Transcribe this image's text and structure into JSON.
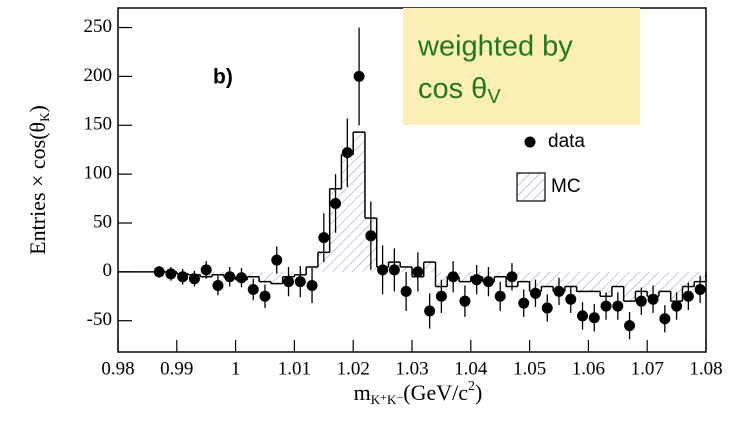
{
  "chart_data": {
    "type": "histogram",
    "panel_label": "b)",
    "xlabel": {
      "text": "m",
      "sub": "K⁺K⁻",
      "mid": "(GeV/c",
      "sup": "2",
      "end": ")"
    },
    "ylabel": {
      "text": "Entries × cos(θ",
      "sub": "K",
      "end": ")"
    },
    "annotation": {
      "line1": "weighted by",
      "line2": "cos θ",
      "sub": "V"
    },
    "xlim": [
      0.98,
      1.08
    ],
    "ylim": [
      -82,
      270
    ],
    "xticks": [
      0.98,
      0.99,
      {
        "value": 1.0,
        "label": "1"
      },
      1.01,
      1.02,
      1.03,
      1.04,
      1.05,
      1.06,
      1.07,
      1.08
    ],
    "yticks": [
      -50,
      0,
      50,
      100,
      150,
      200,
      250
    ],
    "name": "MC",
    "color": "#8f8fc4",
    "bins": [
      0.98,
      0.982,
      0.984,
      0.986,
      0.988,
      0.99,
      0.992,
      0.994,
      0.996,
      0.998,
      1.0,
      1.002,
      1.004,
      1.006,
      1.008,
      1.01,
      1.012,
      1.014,
      1.016,
      1.018,
      1.02,
      1.022,
      1.024,
      1.026,
      1.028,
      1.03,
      1.032,
      1.034,
      1.036,
      1.038,
      1.04,
      1.042,
      1.044,
      1.046,
      1.048,
      1.05,
      1.052,
      1.054,
      1.056,
      1.058,
      1.06,
      1.062,
      1.064,
      1.066,
      1.068,
      1.07,
      1.072,
      1.074,
      1.076,
      1.078,
      1.08
    ],
    "counts": [
      0,
      0,
      0,
      0,
      0,
      -2,
      -3,
      -5,
      -3,
      -5,
      -8,
      -5,
      -10,
      -12,
      -5,
      -3,
      5,
      20,
      85,
      120,
      143,
      55,
      5,
      10,
      5,
      -5,
      10,
      -15,
      -5,
      -10,
      -5,
      -10,
      -5,
      -15,
      -10,
      -20,
      -15,
      -20,
      -15,
      -20,
      -20,
      -25,
      -15,
      -30,
      -20,
      -25,
      -20,
      -30,
      -15,
      -10
    ],
    "points": {
      "name": "data",
      "color": "#000000",
      "x": [
        0.987,
        0.989,
        0.991,
        0.993,
        0.995,
        0.997,
        0.999,
        1.001,
        1.003,
        1.005,
        1.007,
        1.009,
        1.011,
        1.013,
        1.015,
        1.017,
        1.019,
        1.021,
        1.023,
        1.025,
        1.027,
        1.029,
        1.031,
        1.033,
        1.035,
        1.037,
        1.039,
        1.041,
        1.043,
        1.045,
        1.047,
        1.049,
        1.051,
        1.053,
        1.055,
        1.057,
        1.059,
        1.061,
        1.063,
        1.065,
        1.067,
        1.069,
        1.071,
        1.073,
        1.075,
        1.077,
        1.079
      ],
      "values": [
        0,
        -2,
        -5,
        -7,
        2,
        -14,
        -5,
        -6,
        -18,
        -25,
        12,
        -10,
        -10,
        -14,
        35,
        70,
        122,
        200,
        37,
        2,
        2,
        -20,
        0,
        -40,
        -25,
        -5,
        -30,
        -8,
        -10,
        -25,
        -5,
        -32,
        -22,
        -37,
        -20,
        -28,
        -45,
        -47,
        -35,
        -35,
        -55,
        -30,
        -28,
        -48,
        -35,
        -25,
        -18
      ],
      "errors": [
        6,
        7,
        8,
        8,
        9,
        10,
        10,
        10,
        11,
        12,
        14,
        15,
        16,
        18,
        25,
        30,
        35,
        50,
        35,
        25,
        22,
        20,
        20,
        18,
        17,
        16,
        16,
        15,
        15,
        15,
        14,
        14,
        14,
        14,
        14,
        14,
        14,
        14,
        14,
        14,
        14,
        14,
        14,
        14,
        14,
        14,
        14
      ]
    }
  }
}
